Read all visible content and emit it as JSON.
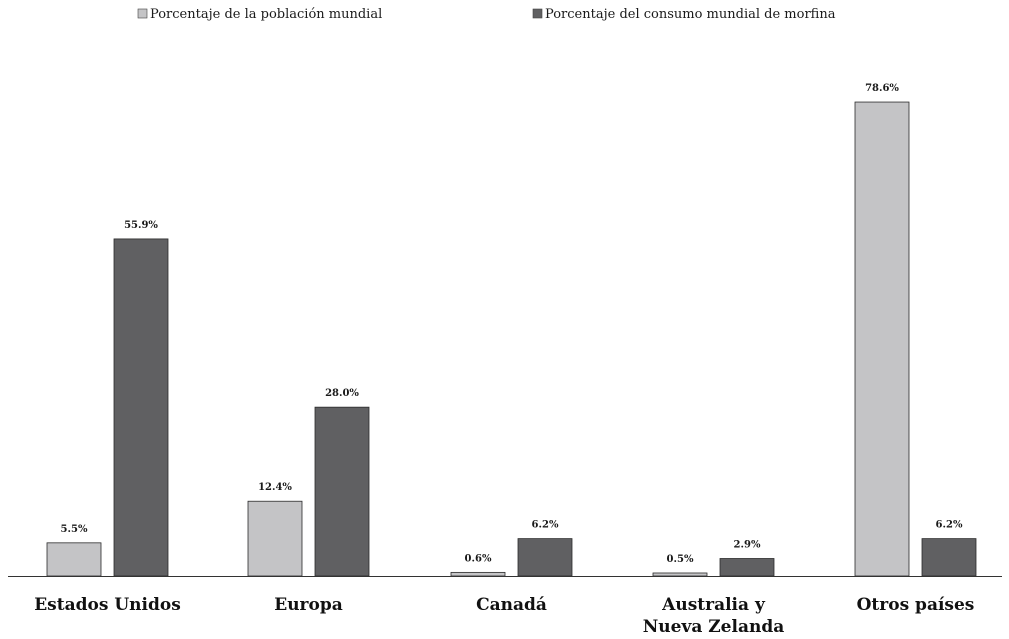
{
  "chart_data": {
    "type": "bar",
    "title": "",
    "xlabel": "",
    "ylabel": "",
    "ylim": [
      0,
      80
    ],
    "grid": false,
    "legend_position": "top",
    "categories": [
      [
        "Estados Unidos"
      ],
      [
        "Europa"
      ],
      [
        "Canadá"
      ],
      [
        "Australia y",
        "Nueva Zelanda"
      ],
      [
        "Otros países"
      ]
    ],
    "series": [
      {
        "name": "Porcentaje de la población mundial",
        "color": "#c4c4c6",
        "values": [
          5.5,
          12.4,
          0.6,
          0.5,
          78.6
        ],
        "labels": [
          "5.5%",
          "12.4%",
          "0.6%",
          "0.5%",
          "78.6%"
        ]
      },
      {
        "name": "Porcentaje del consumo mundial de morfina",
        "color": "#606062",
        "values": [
          55.9,
          28.0,
          6.2,
          2.9,
          6.2
        ],
        "labels": [
          "55.9%",
          "28.0%",
          "6.2%",
          "2.9%",
          "6.2%"
        ]
      }
    ]
  }
}
